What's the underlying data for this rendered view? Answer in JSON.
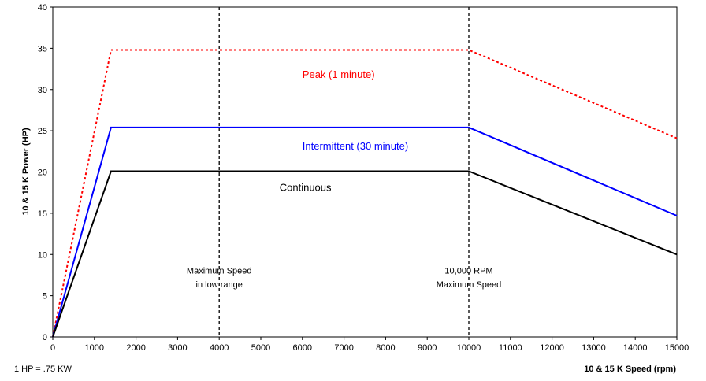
{
  "chart_data": {
    "type": "line",
    "xlabel": "10 & 15 K Speed (rpm)",
    "ylabel": "10 & 15 K Power (HP)",
    "xlim": [
      0,
      15000
    ],
    "ylim": [
      0,
      40
    ],
    "x_ticks": [
      0,
      1000,
      2000,
      3000,
      4000,
      5000,
      6000,
      7000,
      8000,
      9000,
      10000,
      11000,
      12000,
      13000,
      14000,
      15000
    ],
    "y_ticks": [
      0,
      5,
      10,
      15,
      20,
      25,
      30,
      35,
      40
    ],
    "grid": false,
    "series": [
      {
        "name": "Peak (1 minute)",
        "color": "#ff0000",
        "dash": "dotted",
        "points": [
          [
            0,
            0
          ],
          [
            1400,
            34.8
          ],
          [
            10000,
            34.8
          ],
          [
            15000,
            24.1
          ]
        ]
      },
      {
        "name": "Intermittent (30 minute)",
        "color": "#0000ff",
        "dash": "solid",
        "points": [
          [
            0,
            0
          ],
          [
            1400,
            25.4
          ],
          [
            10000,
            25.4
          ],
          [
            15000,
            14.7
          ]
        ]
      },
      {
        "name": "Continuous",
        "color": "#000000",
        "dash": "solid",
        "points": [
          [
            0,
            0
          ],
          [
            1400,
            20.1
          ],
          [
            10000,
            20.1
          ],
          [
            15000,
            10.0
          ]
        ]
      }
    ],
    "vlines": [
      {
        "x": 4000,
        "label_lines": [
          "Maximum Speed",
          "in low range"
        ]
      },
      {
        "x": 10000,
        "label_lines": [
          "10,000 RPM",
          "Maximum Speed"
        ]
      }
    ],
    "note": "1 HP = .75 KW"
  }
}
